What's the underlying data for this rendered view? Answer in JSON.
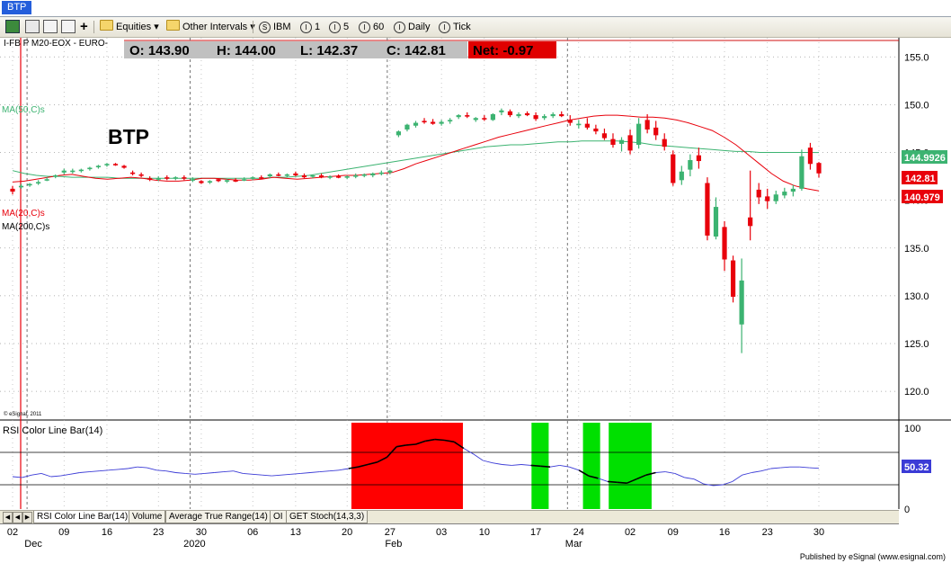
{
  "window": {
    "tab_title": "BTP"
  },
  "toolbar": {
    "equities_label": "Equities",
    "intervals_label": "Other Intervals",
    "symbol_label": "IBM",
    "interval_1": "1",
    "interval_5": "5",
    "interval_60": "60",
    "daily_label": "Daily",
    "tick_label": "Tick",
    "circle_s": "S",
    "circle_i": "I"
  },
  "quote": {
    "symbol_text": "I-FB P M20-EOX - EURO-",
    "open": "O: 143.90",
    "high": "H: 144.00",
    "low": "L: 142.37",
    "close": "C: 142.81",
    "net": "Net: -0.97"
  },
  "chart_labels": {
    "title": "BTP",
    "ma50": "MA(50,C)s",
    "ma20": "MA(20,C)s",
    "ma200": "MA(200,C)s",
    "copyright": "© eSignal, 2011",
    "rsi_title": "RSI Color Line Bar(14)"
  },
  "price_badges": {
    "ma50": "144.9926",
    "last": "142.81",
    "ma20": "140.979",
    "rsi": "50.32"
  },
  "bottom_tabs": [
    "RSI Color Line Bar(14)",
    "Volume",
    "Average True Range(14)",
    "OI",
    "GET Stoch(14,3,3)"
  ],
  "footer_text": "Published by eSignal (www.esignal.com)",
  "colors": {
    "up": "#3cb371",
    "down": "#e8000b",
    "ma20": "#e8000b",
    "ma50": "#3cb371",
    "rsi_line": "#3b3bd6",
    "overbought": "#ff0000",
    "oversold": "#00e000"
  },
  "chart_data": [
    {
      "type": "candlestick",
      "title": "BTP",
      "ylim": [
        117,
        157
      ],
      "yticks": [
        120,
        125,
        130,
        135,
        140,
        145,
        150,
        155
      ],
      "x_tick_labels": [
        "02",
        "09",
        "16",
        "23",
        "30",
        "06",
        "13",
        "20",
        "27",
        "03",
        "10",
        "17",
        "24",
        "02",
        "09",
        "16",
        "23",
        "30"
      ],
      "month_labels": [
        "Dec",
        "2020",
        "Feb",
        "Mar"
      ],
      "bars": [
        {
          "o": 141.2,
          "h": 141.5,
          "l": 140.6,
          "c": 140.9
        },
        {
          "o": 141.4,
          "h": 141.7,
          "l": 141.2,
          "c": 141.5
        },
        {
          "o": 141.6,
          "h": 141.8,
          "l": 141.4,
          "c": 141.7
        },
        {
          "o": 141.8,
          "h": 142.1,
          "l": 141.6,
          "c": 141.9
        },
        {
          "o": 142.2,
          "h": 142.4,
          "l": 142.0,
          "c": 142.2
        },
        {
          "o": 142.5,
          "h": 142.7,
          "l": 142.3,
          "c": 142.6
        },
        {
          "o": 142.9,
          "h": 143.3,
          "l": 142.7,
          "c": 143.1
        },
        {
          "o": 143.0,
          "h": 143.3,
          "l": 142.8,
          "c": 143.1
        },
        {
          "o": 143.1,
          "h": 143.3,
          "l": 142.9,
          "c": 143.2
        },
        {
          "o": 143.3,
          "h": 143.5,
          "l": 143.1,
          "c": 143.4
        },
        {
          "o": 143.5,
          "h": 143.7,
          "l": 143.3,
          "c": 143.6
        },
        {
          "o": 143.7,
          "h": 143.9,
          "l": 143.5,
          "c": 143.8
        },
        {
          "o": 143.8,
          "h": 143.9,
          "l": 143.6,
          "c": 143.7
        },
        {
          "o": 143.6,
          "h": 143.7,
          "l": 143.3,
          "c": 143.4
        },
        {
          "o": 142.9,
          "h": 143.1,
          "l": 142.6,
          "c": 142.8
        },
        {
          "o": 142.7,
          "h": 142.9,
          "l": 142.4,
          "c": 142.6
        },
        {
          "o": 142.3,
          "h": 142.5,
          "l": 142.0,
          "c": 142.2
        },
        {
          "o": 142.2,
          "h": 142.5,
          "l": 142.0,
          "c": 142.3
        },
        {
          "o": 142.4,
          "h": 142.6,
          "l": 142.1,
          "c": 142.3
        },
        {
          "o": 142.3,
          "h": 142.5,
          "l": 142.1,
          "c": 142.4
        },
        {
          "o": 142.4,
          "h": 142.6,
          "l": 142.1,
          "c": 142.3
        },
        {
          "o": 142.1,
          "h": 142.4,
          "l": 141.9,
          "c": 142.2
        },
        {
          "o": 142.0,
          "h": 142.1,
          "l": 141.7,
          "c": 141.8
        },
        {
          "o": 141.9,
          "h": 142.1,
          "l": 141.7,
          "c": 142.0
        },
        {
          "o": 142.2,
          "h": 142.3,
          "l": 141.9,
          "c": 142.0
        },
        {
          "o": 142.0,
          "h": 142.2,
          "l": 141.8,
          "c": 142.1
        },
        {
          "o": 142.1,
          "h": 142.3,
          "l": 141.9,
          "c": 142.0
        },
        {
          "o": 142.2,
          "h": 142.4,
          "l": 142.0,
          "c": 142.2
        },
        {
          "o": 142.3,
          "h": 142.5,
          "l": 142.1,
          "c": 142.4
        },
        {
          "o": 142.4,
          "h": 142.6,
          "l": 142.2,
          "c": 142.3
        },
        {
          "o": 142.5,
          "h": 142.8,
          "l": 142.3,
          "c": 142.7
        },
        {
          "o": 142.7,
          "h": 142.9,
          "l": 142.5,
          "c": 142.6
        },
        {
          "o": 142.6,
          "h": 142.8,
          "l": 142.4,
          "c": 142.7
        },
        {
          "o": 142.8,
          "h": 143.0,
          "l": 142.5,
          "c": 142.6
        },
        {
          "o": 142.6,
          "h": 142.8,
          "l": 142.3,
          "c": 142.4
        },
        {
          "o": 142.5,
          "h": 142.7,
          "l": 142.3,
          "c": 142.6
        },
        {
          "o": 142.6,
          "h": 142.8,
          "l": 142.3,
          "c": 142.4
        },
        {
          "o": 142.4,
          "h": 142.6,
          "l": 142.2,
          "c": 142.5
        },
        {
          "o": 142.5,
          "h": 142.7,
          "l": 142.3,
          "c": 142.4
        },
        {
          "o": 142.4,
          "h": 142.6,
          "l": 142.2,
          "c": 142.5
        },
        {
          "o": 142.5,
          "h": 142.8,
          "l": 142.3,
          "c": 142.6
        },
        {
          "o": 142.6,
          "h": 142.8,
          "l": 142.4,
          "c": 142.7
        },
        {
          "o": 142.6,
          "h": 142.9,
          "l": 142.4,
          "c": 142.8
        },
        {
          "o": 142.8,
          "h": 143.1,
          "l": 142.6,
          "c": 142.9
        },
        {
          "o": 142.9,
          "h": 143.2,
          "l": 142.7,
          "c": 143.1
        },
        {
          "o": 146.8,
          "h": 147.3,
          "l": 146.6,
          "c": 147.2
        },
        {
          "o": 147.4,
          "h": 148.0,
          "l": 147.2,
          "c": 147.9
        },
        {
          "o": 147.8,
          "h": 148.3,
          "l": 147.6,
          "c": 148.1
        },
        {
          "o": 148.3,
          "h": 148.6,
          "l": 148.0,
          "c": 148.2
        },
        {
          "o": 148.2,
          "h": 148.5,
          "l": 147.9,
          "c": 148.0
        },
        {
          "o": 148.0,
          "h": 148.4,
          "l": 147.8,
          "c": 148.2
        },
        {
          "o": 148.3,
          "h": 148.6,
          "l": 148.0,
          "c": 148.4
        },
        {
          "o": 148.7,
          "h": 149.0,
          "l": 148.5,
          "c": 148.9
        },
        {
          "o": 148.9,
          "h": 149.2,
          "l": 148.6,
          "c": 148.8
        },
        {
          "o": 148.4,
          "h": 148.7,
          "l": 148.2,
          "c": 148.6
        },
        {
          "o": 148.6,
          "h": 148.9,
          "l": 148.3,
          "c": 148.5
        },
        {
          "o": 148.4,
          "h": 149.1,
          "l": 148.3,
          "c": 149.0
        },
        {
          "o": 149.2,
          "h": 149.6,
          "l": 148.9,
          "c": 149.4
        },
        {
          "o": 149.3,
          "h": 149.5,
          "l": 148.7,
          "c": 148.9
        },
        {
          "o": 148.8,
          "h": 149.2,
          "l": 148.6,
          "c": 149.0
        },
        {
          "o": 149.1,
          "h": 149.3,
          "l": 148.8,
          "c": 148.9
        },
        {
          "o": 148.9,
          "h": 149.2,
          "l": 148.3,
          "c": 148.5
        },
        {
          "o": 148.6,
          "h": 149.0,
          "l": 148.4,
          "c": 148.8
        },
        {
          "o": 148.8,
          "h": 149.2,
          "l": 148.6,
          "c": 149.0
        },
        {
          "o": 149.0,
          "h": 149.3,
          "l": 148.7,
          "c": 148.8
        },
        {
          "o": 148.4,
          "h": 148.9,
          "l": 147.8,
          "c": 148.1
        },
        {
          "o": 147.9,
          "h": 148.4,
          "l": 147.5,
          "c": 148.0
        },
        {
          "o": 148.0,
          "h": 148.6,
          "l": 147.4,
          "c": 147.6
        },
        {
          "o": 147.5,
          "h": 147.9,
          "l": 146.9,
          "c": 147.2
        },
        {
          "o": 147.0,
          "h": 147.5,
          "l": 146.3,
          "c": 146.5
        },
        {
          "o": 146.4,
          "h": 147.0,
          "l": 145.5,
          "c": 145.8
        },
        {
          "o": 145.9,
          "h": 146.6,
          "l": 145.1,
          "c": 146.3
        },
        {
          "o": 146.8,
          "h": 147.4,
          "l": 144.8,
          "c": 145.2
        },
        {
          "o": 145.8,
          "h": 148.6,
          "l": 145.4,
          "c": 148.0
        },
        {
          "o": 148.4,
          "h": 149.0,
          "l": 147.0,
          "c": 147.4
        },
        {
          "o": 147.6,
          "h": 148.3,
          "l": 146.3,
          "c": 146.8
        },
        {
          "o": 146.4,
          "h": 147.0,
          "l": 145.2,
          "c": 145.6
        },
        {
          "o": 144.8,
          "h": 145.2,
          "l": 141.5,
          "c": 141.8
        },
        {
          "o": 142.1,
          "h": 143.6,
          "l": 141.6,
          "c": 143.0
        },
        {
          "o": 143.2,
          "h": 144.8,
          "l": 142.5,
          "c": 144.2
        },
        {
          "o": 144.7,
          "h": 145.5,
          "l": 143.3,
          "c": 144.1
        },
        {
          "o": 141.8,
          "h": 142.4,
          "l": 135.8,
          "c": 136.3
        },
        {
          "o": 136.2,
          "h": 140.3,
          "l": 135.9,
          "c": 139.3
        },
        {
          "o": 137.2,
          "h": 137.8,
          "l": 132.6,
          "c": 133.8
        },
        {
          "o": 133.7,
          "h": 134.2,
          "l": 129.3,
          "c": 129.9
        },
        {
          "o": 127.0,
          "h": 133.9,
          "l": 124.0,
          "c": 131.6
        },
        {
          "o": 138.2,
          "h": 143.1,
          "l": 135.8,
          "c": 137.3
        },
        {
          "o": 141.1,
          "h": 141.8,
          "l": 139.6,
          "c": 140.3
        },
        {
          "o": 140.4,
          "h": 141.2,
          "l": 139.1,
          "c": 139.9
        },
        {
          "o": 139.9,
          "h": 141.0,
          "l": 139.6,
          "c": 140.6
        },
        {
          "o": 140.5,
          "h": 141.3,
          "l": 140.2,
          "c": 140.9
        },
        {
          "o": 140.9,
          "h": 141.6,
          "l": 140.4,
          "c": 141.2
        },
        {
          "o": 141.2,
          "h": 145.3,
          "l": 141.0,
          "c": 144.6
        },
        {
          "o": 145.5,
          "h": 146.0,
          "l": 143.2,
          "c": 143.8
        },
        {
          "o": 143.9,
          "h": 144.0,
          "l": 142.37,
          "c": 142.81
        }
      ],
      "ma20": [
        141.9,
        142.0,
        142.2,
        142.4,
        142.6,
        142.7,
        142.5,
        142.3,
        142.2,
        142.3,
        142.4,
        142.3,
        142.1,
        142.0,
        142.0,
        142.1,
        142.3,
        142.3,
        142.2,
        142.1,
        142.1,
        142.2,
        142.4,
        142.3,
        142.2,
        142.3,
        142.4,
        142.5,
        142.6,
        142.6,
        142.7,
        142.8,
        142.9,
        143.3,
        143.8,
        144.2,
        144.6,
        145.0,
        145.4,
        145.8,
        146.2,
        146.6,
        146.9,
        147.2,
        147.5,
        147.8,
        148.1,
        148.4,
        148.6,
        148.8,
        148.9,
        148.9,
        148.8,
        148.7,
        148.7,
        148.6,
        148.4,
        148.1,
        147.7,
        147.3,
        146.6,
        145.8,
        144.8,
        143.8,
        142.8,
        142.0,
        141.5,
        141.2,
        140.98
      ],
      "ma50": [
        143.1,
        142.8,
        142.6,
        142.5,
        142.5,
        142.4,
        142.4,
        142.4,
        142.4,
        142.3,
        142.3,
        142.3,
        142.3,
        142.3,
        142.3,
        142.3,
        142.3,
        142.3,
        142.3,
        142.3,
        142.3,
        142.3,
        142.4,
        142.4,
        142.5,
        142.6,
        142.8,
        143.0,
        143.2,
        143.4,
        143.6,
        143.8,
        144.0,
        144.2,
        144.4,
        144.6,
        144.8,
        145.0,
        145.2,
        145.4,
        145.6,
        145.7,
        145.8,
        145.8,
        145.9,
        146.0,
        146.1,
        146.1,
        146.2,
        146.2,
        146.2,
        146.2,
        146.1,
        146.0,
        145.8,
        145.7,
        145.6,
        145.5,
        145.4,
        145.3,
        145.2,
        145.1,
        145.1,
        145.0,
        145.0,
        145.0,
        145.0,
        145.0,
        144.99
      ],
      "rsi": [
        40,
        39,
        42,
        44,
        40,
        41,
        43,
        45,
        46,
        47,
        48,
        49,
        50,
        52,
        51,
        48,
        47,
        45,
        44,
        43,
        44,
        45,
        46,
        47,
        44,
        43,
        42,
        41,
        42,
        43,
        44,
        45,
        46,
        47,
        48,
        50,
        52,
        55,
        58,
        64,
        77,
        79,
        80,
        84,
        86,
        85,
        83,
        75,
        68,
        60,
        57,
        55,
        54,
        55,
        54,
        53,
        52,
        54,
        52,
        48,
        41,
        38,
        34,
        33,
        32,
        37,
        42,
        45,
        46,
        44,
        39,
        37,
        31,
        29,
        30,
        34,
        42,
        45,
        47,
        50,
        51,
        52,
        52,
        51,
        50.32
      ],
      "rsi_ylim": [
        0,
        110
      ],
      "rsi_levels": [
        30,
        70
      ],
      "rsi_yticks": [
        0,
        50,
        100
      ],
      "rsi_highlights": [
        {
          "from": 39.5,
          "to": 52.5,
          "zone": "overbought"
        },
        {
          "from": 60.5,
          "to": 62.5,
          "zone": "oversold"
        },
        {
          "from": 66.5,
          "to": 68.5,
          "zone": "oversold"
        },
        {
          "from": 69.5,
          "to": 74.5,
          "zone": "oversold"
        }
      ]
    }
  ]
}
